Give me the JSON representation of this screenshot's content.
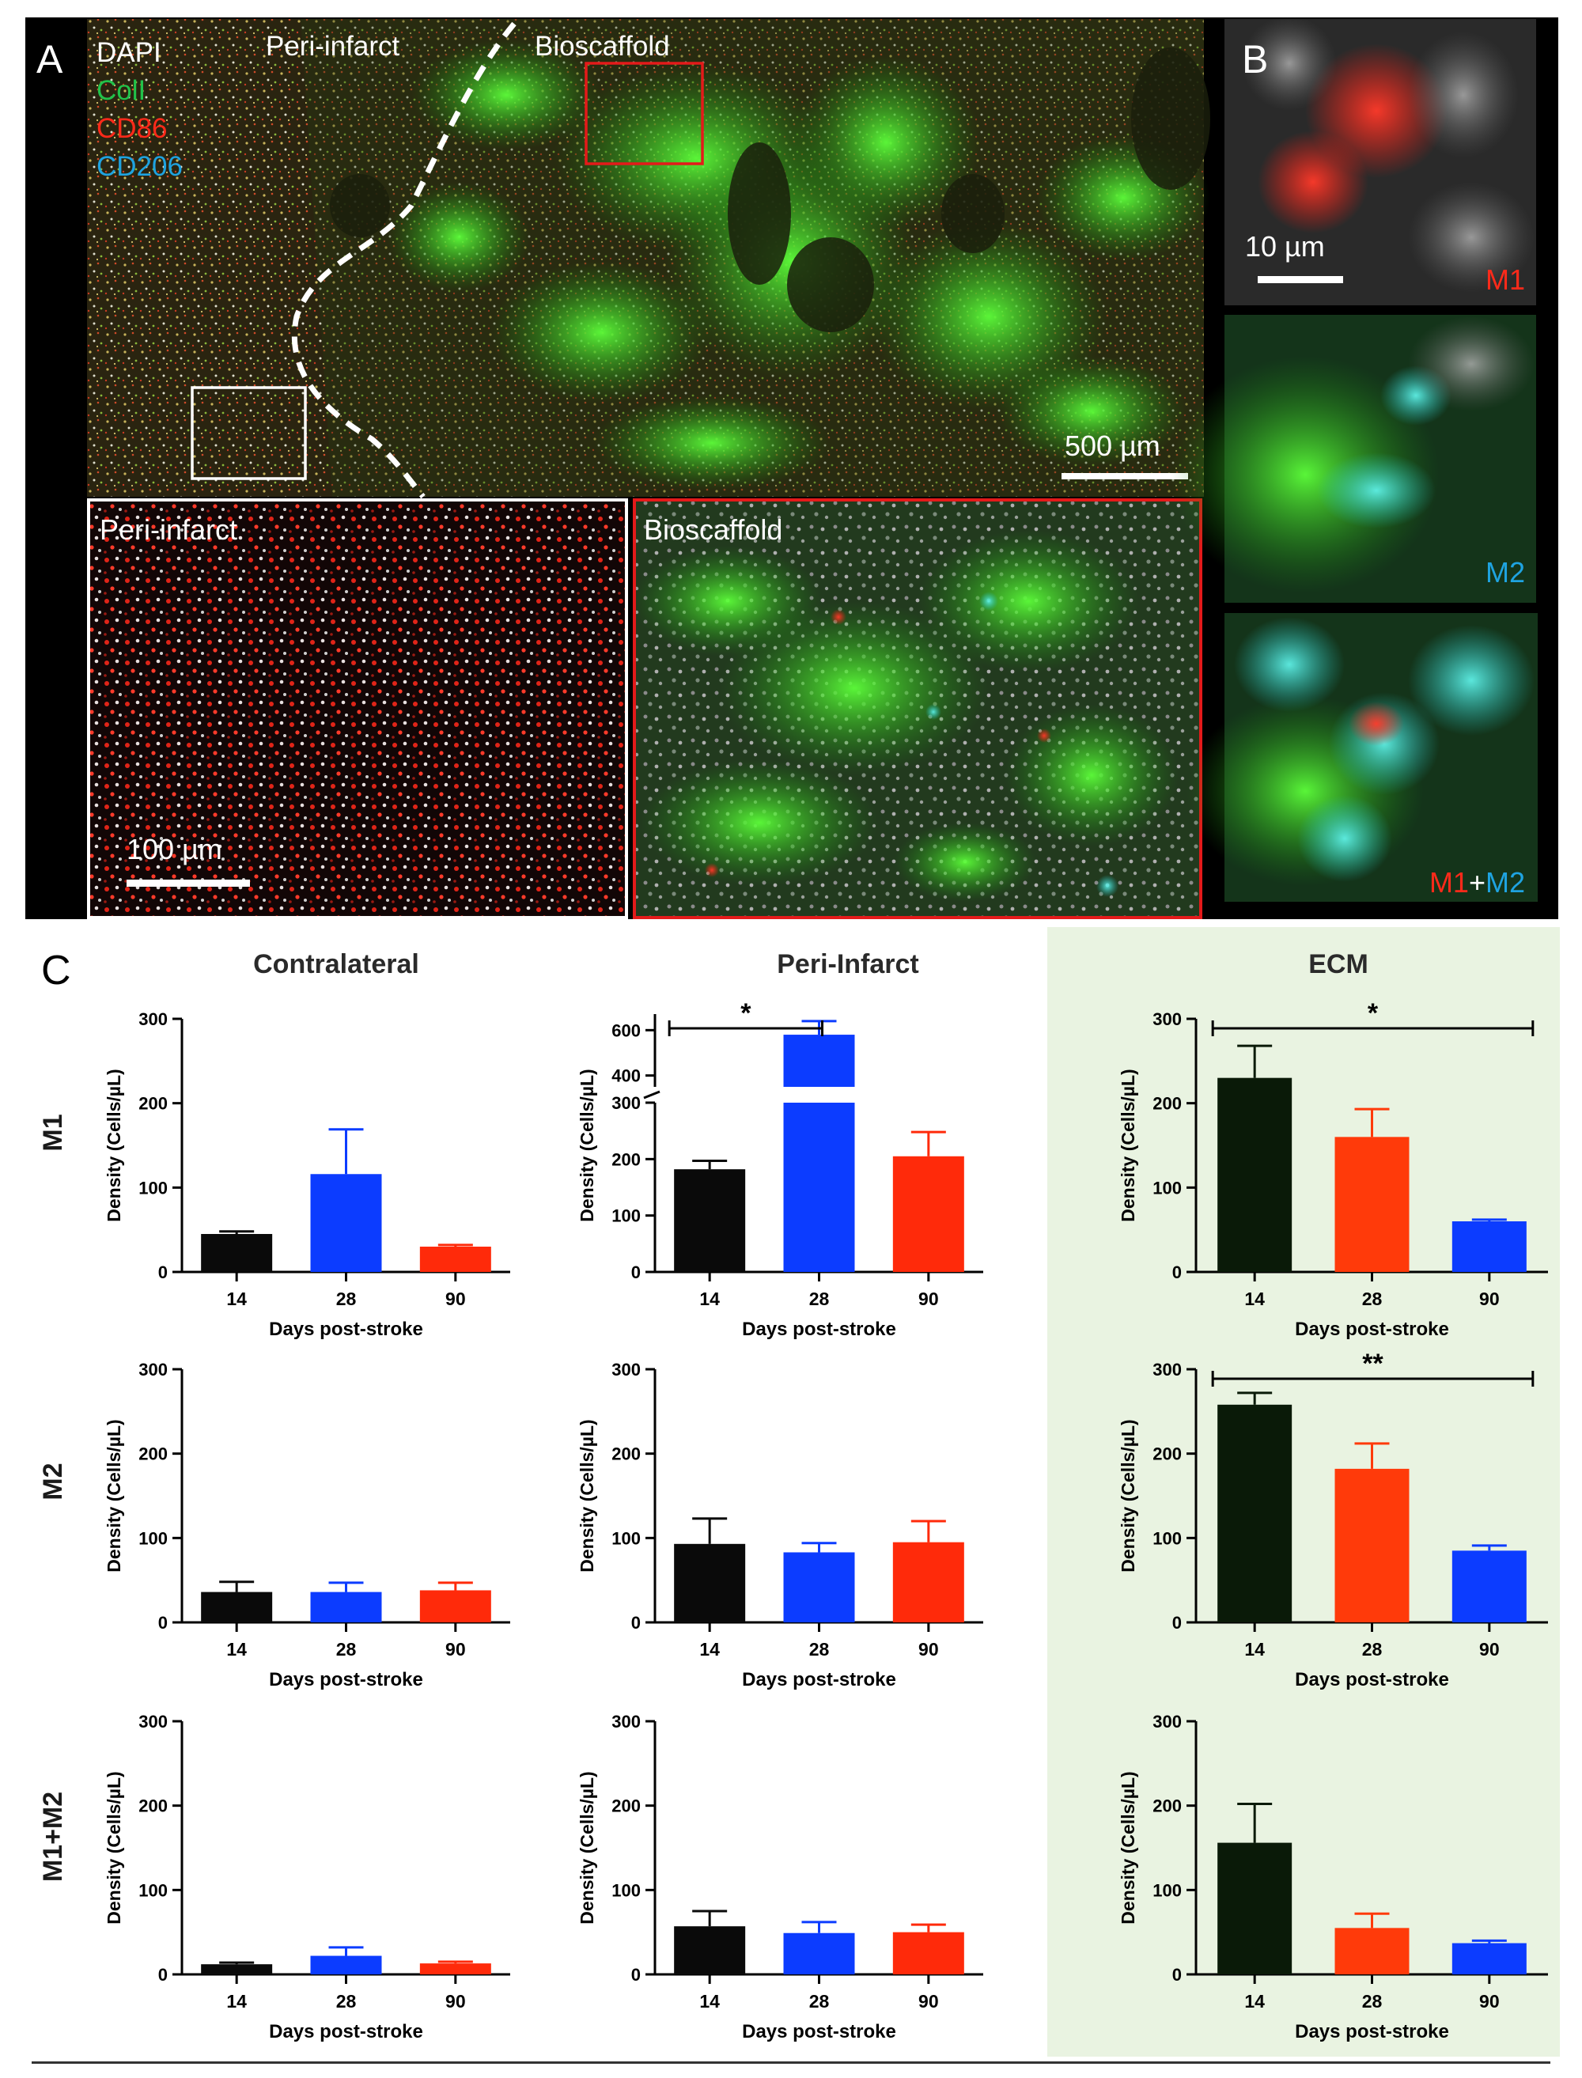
{
  "panels": {
    "a": {
      "letter": "A",
      "stain_labels": [
        {
          "text": "DAPI",
          "color": "#ffffff"
        },
        {
          "text": "ColI",
          "color": "#21c24a"
        },
        {
          "text": "CD86",
          "color": "#ff2a1a"
        },
        {
          "text": "CD206",
          "color": "#1fa3e0"
        }
      ],
      "region_left": "Peri-infarct",
      "region_right": "Bioscaffold",
      "scalebar": "500 µm",
      "inset_left_label": "Peri-infarct",
      "inset_left_scalebar": "100 µm",
      "inset_right_label": "Bioscaffold"
    },
    "b": {
      "letter": "B",
      "scalebar": "10 µm",
      "labels": {
        "m1": "M1",
        "m2": "M2",
        "combo_m1": "M1",
        "combo_plus": "+",
        "combo_m2": "M2"
      }
    },
    "c": {
      "letter": "C"
    }
  },
  "colors": {
    "black_bar": "#0a0a0a",
    "ecm_black_bar": "#0a1a08",
    "blue_bar": "#0c3cff",
    "red_bar": "#ff2a0a",
    "ecm_red_bar": "#ff3a0a",
    "ecm_background": "#e9f3e1",
    "m1_text": "#ff2a1a",
    "m2_text": "#1fa3e0"
  },
  "chart_data": {
    "type": "bar",
    "column_titles": [
      "Contralateral",
      "Peri-Infarct",
      "ECM"
    ],
    "row_labels": [
      "M1",
      "M2",
      "M1+M2"
    ],
    "ylabel": "Density (Cells/µL)",
    "xlabel": "Days post-stroke",
    "charts": [
      {
        "row": "M1",
        "column": "Contralateral",
        "categories": [
          "14",
          "28",
          "90"
        ],
        "values": [
          45,
          116,
          30
        ],
        "errors": [
          3,
          53,
          2
        ],
        "bar_colors": [
          "black",
          "blue",
          "red"
        ],
        "ylim": [
          0,
          300
        ],
        "yticks": [
          "0",
          "100",
          "200",
          "300"
        ]
      },
      {
        "row": "M1",
        "column": "Peri-Infarct",
        "categories": [
          "14",
          "28",
          "90"
        ],
        "values": [
          182,
          580,
          205
        ],
        "errors": [
          15,
          60,
          43
        ],
        "bar_colors": [
          "black",
          "blue",
          "red"
        ],
        "ylim": [
          0,
          650
        ],
        "yticks": [
          "0",
          "100",
          "200",
          "300",
          "400",
          "600"
        ],
        "axis_break": [
          300,
          350
        ],
        "significance": [
          {
            "from": "14",
            "to": "28",
            "label": "*"
          }
        ]
      },
      {
        "row": "M1",
        "column": "ECM",
        "categories": [
          "14",
          "28",
          "90"
        ],
        "values": [
          230,
          160,
          60
        ],
        "errors": [
          38,
          33,
          2
        ],
        "bar_colors": [
          "black",
          "red",
          "blue"
        ],
        "ylim": [
          0,
          300
        ],
        "yticks": [
          "0",
          "100",
          "200",
          "300"
        ],
        "significance": [
          {
            "from": "14",
            "to": "90",
            "label": "*"
          }
        ]
      },
      {
        "row": "M2",
        "column": "Contralateral",
        "categories": [
          "14",
          "28",
          "90"
        ],
        "values": [
          36,
          36,
          38
        ],
        "errors": [
          12,
          11,
          9
        ],
        "bar_colors": [
          "black",
          "blue",
          "red"
        ],
        "ylim": [
          0,
          300
        ],
        "yticks": [
          "0",
          "100",
          "200",
          "300"
        ]
      },
      {
        "row": "M2",
        "column": "Peri-Infarct",
        "categories": [
          "14",
          "28",
          "90"
        ],
        "values": [
          93,
          83,
          95
        ],
        "errors": [
          30,
          11,
          25
        ],
        "bar_colors": [
          "black",
          "blue",
          "red"
        ],
        "ylim": [
          0,
          300
        ],
        "yticks": [
          "0",
          "100",
          "200",
          "300"
        ]
      },
      {
        "row": "M2",
        "column": "ECM",
        "categories": [
          "14",
          "28",
          "90"
        ],
        "values": [
          258,
          182,
          85
        ],
        "errors": [
          14,
          30,
          6
        ],
        "bar_colors": [
          "black",
          "red",
          "blue"
        ],
        "ylim": [
          0,
          300
        ],
        "yticks": [
          "0",
          "100",
          "200",
          "300"
        ],
        "significance": [
          {
            "from": "14",
            "to": "90",
            "label": "**"
          }
        ]
      },
      {
        "row": "M1+M2",
        "column": "Contralateral",
        "categories": [
          "14",
          "28",
          "90"
        ],
        "values": [
          12,
          22,
          13
        ],
        "errors": [
          2,
          10,
          2
        ],
        "bar_colors": [
          "black",
          "blue",
          "red"
        ],
        "ylim": [
          0,
          300
        ],
        "yticks": [
          "0",
          "100",
          "200",
          "300"
        ]
      },
      {
        "row": "M1+M2",
        "column": "Peri-Infarct",
        "categories": [
          "14",
          "28",
          "90"
        ],
        "values": [
          57,
          49,
          50
        ],
        "errors": [
          18,
          13,
          9
        ],
        "bar_colors": [
          "black",
          "blue",
          "red"
        ],
        "ylim": [
          0,
          300
        ],
        "yticks": [
          "0",
          "100",
          "200",
          "300"
        ]
      },
      {
        "row": "M1+M2",
        "column": "ECM",
        "categories": [
          "14",
          "28",
          "90"
        ],
        "values": [
          156,
          55,
          37
        ],
        "errors": [
          46,
          17,
          3
        ],
        "bar_colors": [
          "black",
          "red",
          "blue"
        ],
        "ylim": [
          0,
          300
        ],
        "yticks": [
          "0",
          "100",
          "200",
          "300"
        ]
      }
    ]
  }
}
